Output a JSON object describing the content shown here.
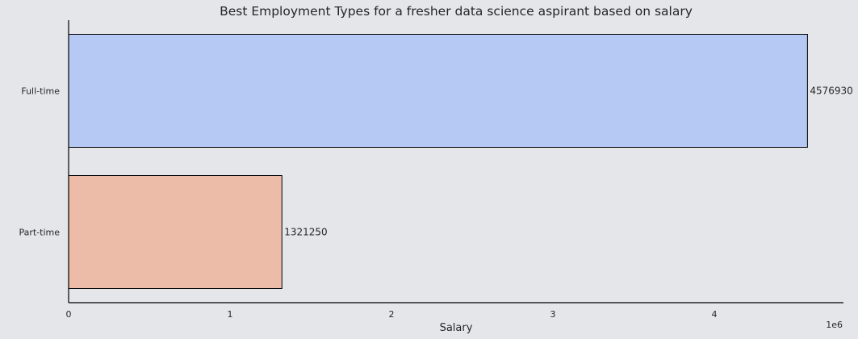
{
  "chart_data": {
    "type": "bar",
    "orientation": "horizontal",
    "title": "Best Employment Types for a fresher data science aspirant based on salary",
    "xlabel": "Salary",
    "ylabel": "",
    "categories": [
      "Full-time",
      "Part-time"
    ],
    "values": [
      4576930,
      1321250
    ],
    "data_labels": [
      "4576930",
      "1321250"
    ],
    "bar_colors": [
      "#b6c9f5",
      "#ecbca9"
    ],
    "bar_edge_color": "#000000",
    "background_color": "#e5e6ea",
    "xlim": [
      0,
      4800000
    ],
    "x_ticks": [
      0,
      1000000,
      2000000,
      3000000,
      4000000
    ],
    "x_tick_labels": [
      "0",
      "1",
      "2",
      "3",
      "4"
    ],
    "x_offset_label": "1e6",
    "grid": false
  }
}
